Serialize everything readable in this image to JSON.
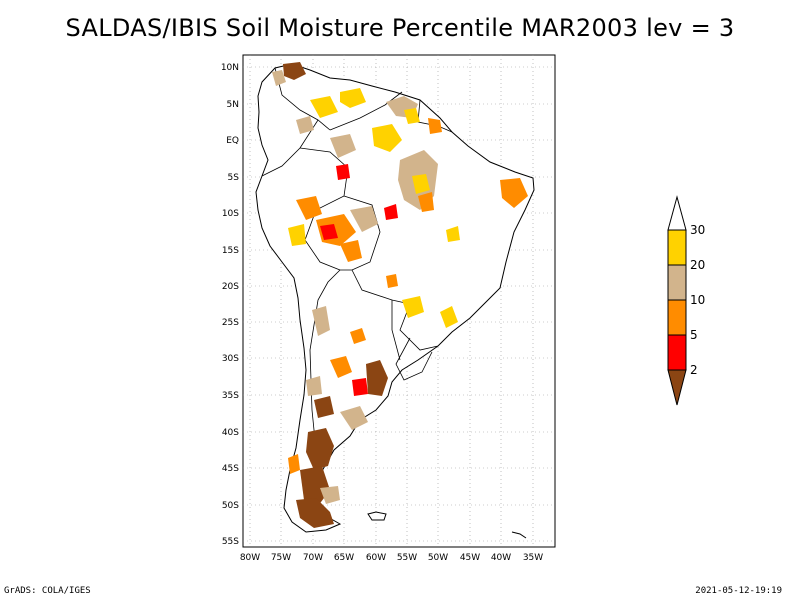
{
  "title": "SALDAS/IBIS Soil Moisture Percentile MAR2003 lev = 3",
  "footer": {
    "left": "GrADS: COLA/IGES",
    "right": "2021-05-12-19:19"
  },
  "axes": {
    "lat_ticks": [
      "10N",
      "5N",
      "EQ",
      "5S",
      "10S",
      "15S",
      "20S",
      "25S",
      "30S",
      "35S",
      "40S",
      "45S",
      "50S",
      "55S"
    ],
    "lon_ticks": [
      "80W",
      "75W",
      "70W",
      "65W",
      "60W",
      "55W",
      "50W",
      "45W",
      "40W",
      "35W"
    ]
  },
  "legend": {
    "labels": [
      "30",
      "20",
      "10",
      "5",
      "2"
    ],
    "colors": {
      "above_30": "#ffffff",
      "20_30": "#ffd200",
      "10_20": "#d2b48c",
      "5_10": "#ff8c00",
      "2_5": "#ff0000",
      "below_2": "#8b4513"
    }
  }
}
